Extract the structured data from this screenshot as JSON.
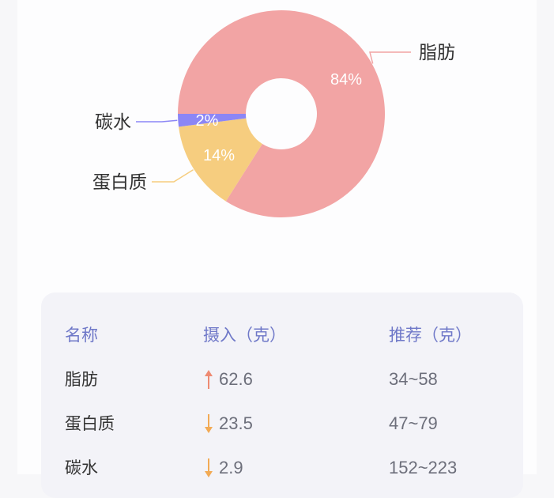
{
  "chart_data": {
    "type": "pie",
    "variant": "donut",
    "title": "",
    "series": [
      {
        "name": "脂肪",
        "value": 84,
        "label": "84%",
        "color": "#f2a4a4"
      },
      {
        "name": "蛋白质",
        "value": 14,
        "label": "14%",
        "color": "#f6cd7f"
      },
      {
        "name": "碳水",
        "value": 2,
        "label": "2%",
        "color": "#8c86f5"
      }
    ],
    "legend": "outer labels with leader lines"
  },
  "table": {
    "headers": [
      "名称",
      "摄入（克）",
      "推荐（克）"
    ],
    "rows": [
      {
        "name": "脂肪",
        "intake": "62.6",
        "trend": "up",
        "trend_color": "#ee8a72",
        "recommended": "34~58"
      },
      {
        "name": "蛋白质",
        "intake": "23.5",
        "trend": "down",
        "trend_color": "#f2aa55",
        "recommended": "47~79"
      },
      {
        "name": "碳水",
        "intake": "2.9",
        "trend": "down",
        "trend_color": "#f2aa55",
        "recommended": "152~223"
      }
    ]
  },
  "colors": {
    "header_text": "#6f78c8",
    "card_bg": "#f3f3f8"
  }
}
